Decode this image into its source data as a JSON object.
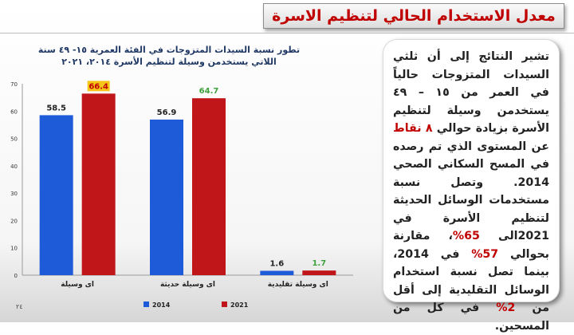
{
  "header": {
    "title": "معدل الاستخدام الحالي لتنظيم الاسرة"
  },
  "chart_data": {
    "type": "bar",
    "title_line1": "تطور نسبة السيدات المتزوجات في الفئة العمرية ١٥- ٤٩ سنة",
    "title_line2": "اللاتي يستخدمن وسيلة لتنظيم الأسرة ٢٠١٤، ٢٠٢١",
    "categories": [
      "اى وسيلة",
      "اى وسيلة حديثة",
      "اى وسيلة تقليدية"
    ],
    "series": [
      {
        "name": "2014",
        "color": "#1e5bd8",
        "label_color": "#222222",
        "values": [
          58.5,
          56.9,
          1.6
        ]
      },
      {
        "name": "2021",
        "color": "#c0161a",
        "label_color": "#c00000",
        "values": [
          66.4,
          64.7,
          1.7
        ]
      }
    ],
    "series_label_colors": [
      "#222222",
      "#3fa23c",
      "#3fa23c"
    ],
    "highlight": {
      "series": 1,
      "index": 0,
      "fill": "#f5c518",
      "text_color": "#c00000"
    },
    "ylim": [
      0,
      70
    ],
    "yticks": [
      0,
      10,
      20,
      30,
      40,
      50,
      60,
      70
    ],
    "legend_position": "bottom",
    "xlabel": "",
    "ylabel": ""
  },
  "side_box": {
    "t1": "تشير النتائج إلى أن ثلثي السيدات المتزوجات حالياً في العمر من ١٥ – ٤٩ يستخدمن وسيلة لتنظيم الأسرة بزيادة حوالي ",
    "t2": "٨ نقاط",
    "t3": " عن المستوى الذي تم رصده في المسح السكاني الصحي 2014. وتصل نسبة مستخدمات الوسائل الحديثة لتنظيم الأسرة في 2021الى ",
    "t4": "65%",
    "t5": "، مقارنة بحوالي ",
    "t6": "57%",
    "t7": " في 2014، بينما تصل نسبة استخدام الوسائل التقليدية إلى أقل من ",
    "t8": "2%",
    "t9": " في كل من المسحين."
  },
  "page_number": "٢٤"
}
